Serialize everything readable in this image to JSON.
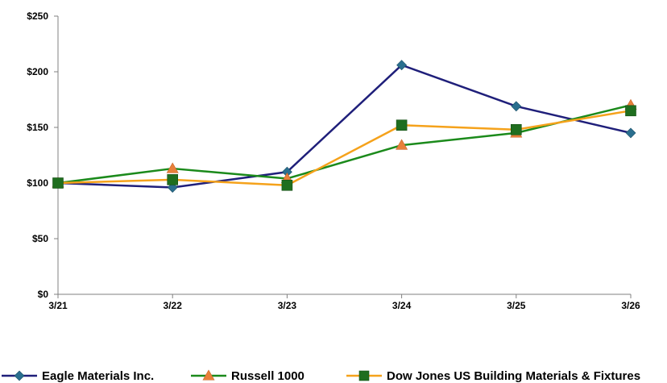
{
  "chart_data": {
    "type": "line",
    "categories": [
      "3/21",
      "3/22",
      "3/23",
      "3/24",
      "3/25",
      "3/26"
    ],
    "ylim": [
      0,
      250
    ],
    "yticks": [
      "$0",
      "$50",
      "$100",
      "$150",
      "$200",
      "$250"
    ],
    "ytick_values": [
      0,
      50,
      100,
      150,
      200,
      250
    ],
    "grid": false,
    "legend_position": "bottom",
    "series": [
      {
        "name": "Eagle Materials Inc.",
        "color": "#1f1f7a",
        "marker": "diamond",
        "marker_color": "#2a6f8f",
        "values": [
          100,
          96,
          110,
          206,
          169,
          145
        ]
      },
      {
        "name": "Russell 1000",
        "color": "#1b8a1b",
        "marker": "triangle",
        "marker_color": "#e8803a",
        "values": [
          100,
          113,
          104,
          134,
          145,
          170
        ]
      },
      {
        "name": "Dow Jones US Building Materials & Fixtures",
        "color": "#f5a21b",
        "marker": "square",
        "marker_color": "#1f6e1f",
        "values": [
          100,
          103,
          98,
          152,
          148,
          165
        ]
      }
    ]
  }
}
